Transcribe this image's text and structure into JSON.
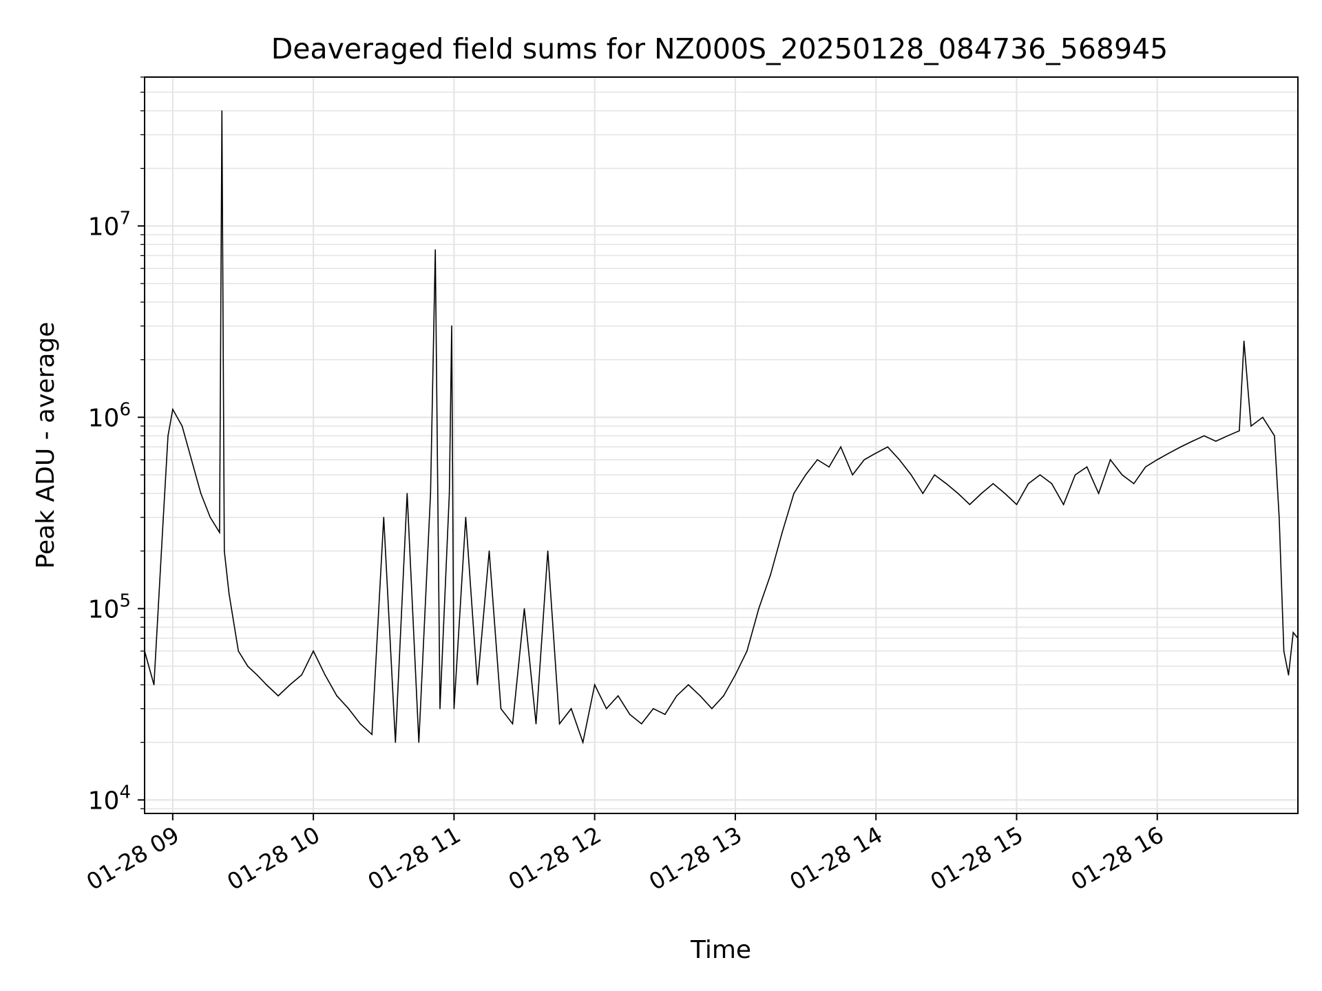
{
  "chart_data": {
    "type": "line",
    "title": "Deaveraged field sums for NZ000S_20250128_084736_568945",
    "xlabel": "Time",
    "ylabel": "Peak ADU - average",
    "yscale": "log",
    "ylim": [
      8500,
      60000000
    ],
    "xlim": [
      "2025-01-28 08:48",
      "2025-01-28 17:00"
    ],
    "grid": true,
    "line_color": "#000000",
    "grid_color": "#e3e3e3",
    "x_ticks": [
      {
        "t": "2025-01-28 09:00",
        "label": "01-28 09"
      },
      {
        "t": "2025-01-28 10:00",
        "label": "01-28 10"
      },
      {
        "t": "2025-01-28 11:00",
        "label": "01-28 11"
      },
      {
        "t": "2025-01-28 12:00",
        "label": "01-28 12"
      },
      {
        "t": "2025-01-28 13:00",
        "label": "01-28 13"
      },
      {
        "t": "2025-01-28 14:00",
        "label": "01-28 14"
      },
      {
        "t": "2025-01-28 15:00",
        "label": "01-28 15"
      },
      {
        "t": "2025-01-28 16:00",
        "label": "01-28 16"
      }
    ],
    "y_ticks": [
      {
        "value": 10000,
        "label": "10",
        "exp": "4"
      },
      {
        "value": 100000,
        "label": "10",
        "exp": "5"
      },
      {
        "value": 1000000,
        "label": "10",
        "exp": "6"
      },
      {
        "value": 10000000,
        "label": "10",
        "exp": "7"
      }
    ],
    "series": [
      {
        "x": [
          "2025-01-28 08:48",
          "2025-01-28 08:52",
          "2025-01-28 08:56",
          "2025-01-28 08:58",
          "2025-01-28 09:00",
          "2025-01-28 09:04",
          "2025-01-28 09:08",
          "2025-01-28 09:12",
          "2025-01-28 09:16",
          "2025-01-28 09:20",
          "2025-01-28 09:21",
          "2025-01-28 09:22",
          "2025-01-28 09:24",
          "2025-01-28 09:28",
          "2025-01-28 09:32",
          "2025-01-28 09:36",
          "2025-01-28 09:40",
          "2025-01-28 09:45",
          "2025-01-28 09:50",
          "2025-01-28 09:55",
          "2025-01-28 10:00",
          "2025-01-28 10:05",
          "2025-01-28 10:10",
          "2025-01-28 10:15",
          "2025-01-28 10:20",
          "2025-01-28 10:25",
          "2025-01-28 10:30",
          "2025-01-28 10:35",
          "2025-01-28 10:40",
          "2025-01-28 10:45",
          "2025-01-28 10:50",
          "2025-01-28 10:52",
          "2025-01-28 10:54",
          "2025-01-28 10:58",
          "2025-01-28 10:59",
          "2025-01-28 11:00",
          "2025-01-28 11:05",
          "2025-01-28 11:10",
          "2025-01-28 11:15",
          "2025-01-28 11:20",
          "2025-01-28 11:25",
          "2025-01-28 11:30",
          "2025-01-28 11:35",
          "2025-01-28 11:40",
          "2025-01-28 11:45",
          "2025-01-28 11:50",
          "2025-01-28 11:55",
          "2025-01-28 12:00",
          "2025-01-28 12:05",
          "2025-01-28 12:10",
          "2025-01-28 12:15",
          "2025-01-28 12:20",
          "2025-01-28 12:25",
          "2025-01-28 12:30",
          "2025-01-28 12:35",
          "2025-01-28 12:40",
          "2025-01-28 12:45",
          "2025-01-28 12:50",
          "2025-01-28 12:55",
          "2025-01-28 13:00",
          "2025-01-28 13:05",
          "2025-01-28 13:10",
          "2025-01-28 13:15",
          "2025-01-28 13:20",
          "2025-01-28 13:25",
          "2025-01-28 13:30",
          "2025-01-28 13:35",
          "2025-01-28 13:40",
          "2025-01-28 13:45",
          "2025-01-28 13:50",
          "2025-01-28 13:55",
          "2025-01-28 14:00",
          "2025-01-28 14:05",
          "2025-01-28 14:10",
          "2025-01-28 14:15",
          "2025-01-28 14:20",
          "2025-01-28 14:25",
          "2025-01-28 14:30",
          "2025-01-28 14:35",
          "2025-01-28 14:40",
          "2025-01-28 14:45",
          "2025-01-28 14:50",
          "2025-01-28 14:55",
          "2025-01-28 15:00",
          "2025-01-28 15:05",
          "2025-01-28 15:10",
          "2025-01-28 15:15",
          "2025-01-28 15:20",
          "2025-01-28 15:25",
          "2025-01-28 15:30",
          "2025-01-28 15:35",
          "2025-01-28 15:40",
          "2025-01-28 15:45",
          "2025-01-28 15:50",
          "2025-01-28 15:55",
          "2025-01-28 16:00",
          "2025-01-28 16:05",
          "2025-01-28 16:10",
          "2025-01-28 16:15",
          "2025-01-28 16:20",
          "2025-01-28 16:25",
          "2025-01-28 16:30",
          "2025-01-28 16:35",
          "2025-01-28 16:37",
          "2025-01-28 16:40",
          "2025-01-28 16:45",
          "2025-01-28 16:50",
          "2025-01-28 16:52",
          "2025-01-28 16:54",
          "2025-01-28 16:56",
          "2025-01-28 16:58",
          "2025-01-28 17:00"
        ],
        "y": [
          60000,
          40000,
          300000,
          800000,
          1100000,
          900000,
          600000,
          400000,
          300000,
          250000,
          40000000,
          200000,
          120000,
          60000,
          50000,
          45000,
          40000,
          35000,
          40000,
          45000,
          60000,
          45000,
          35000,
          30000,
          25000,
          22000,
          300000,
          20000,
          400000,
          20000,
          400000,
          7500000,
          30000,
          400000,
          3000000,
          30000,
          300000,
          40000,
          200000,
          30000,
          25000,
          100000,
          25000,
          200000,
          25000,
          30000,
          20000,
          40000,
          30000,
          35000,
          28000,
          25000,
          30000,
          28000,
          35000,
          40000,
          35000,
          30000,
          35000,
          45000,
          60000,
          100000,
          150000,
          250000,
          400000,
          500000,
          600000,
          550000,
          700000,
          500000,
          600000,
          650000,
          700000,
          600000,
          500000,
          400000,
          500000,
          450000,
          400000,
          350000,
          400000,
          450000,
          400000,
          350000,
          450000,
          500000,
          450000,
          350000,
          500000,
          550000,
          400000,
          600000,
          500000,
          450000,
          550000,
          600000,
          650000,
          700000,
          750000,
          800000,
          750000,
          800000,
          850000,
          2500000,
          900000,
          1000000,
          800000,
          300000,
          60000,
          45000,
          75000,
          70000
        ]
      }
    ]
  }
}
